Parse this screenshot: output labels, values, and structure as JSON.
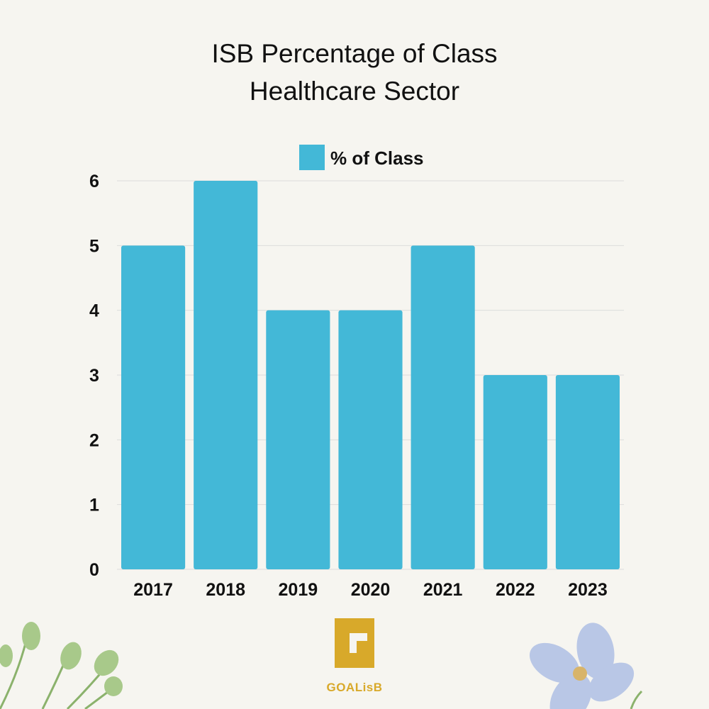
{
  "colors": {
    "background": "#f6f5f0",
    "bar": "#43b8d7",
    "gridline": "#dcdcdc",
    "logo_gold": "#d8a92a",
    "leaf_green": "#a8c98a",
    "flower_blue": "#b9c7e6"
  },
  "chart_data": {
    "type": "bar",
    "title_lines": [
      "ISB Percentage of Class",
      "Healthcare Sector"
    ],
    "legend": {
      "label": "% of Class",
      "placement": "top-center"
    },
    "categories": [
      "2017",
      "2018",
      "2019",
      "2020",
      "2021",
      "2022",
      "2023"
    ],
    "series": [
      {
        "name": "% of Class",
        "values": [
          5,
          6,
          4,
          4,
          5,
          3,
          3
        ]
      }
    ],
    "yticks": [
      "0",
      "1",
      "2",
      "3",
      "4",
      "5",
      "6"
    ],
    "ylim": [
      0,
      6
    ],
    "grid": true,
    "xlabel": "",
    "ylabel": ""
  },
  "logo": {
    "text": "GOALisB",
    "icon": "g-logo-icon"
  },
  "decorations": [
    "leaf-branch-icon",
    "flower-icon"
  ]
}
